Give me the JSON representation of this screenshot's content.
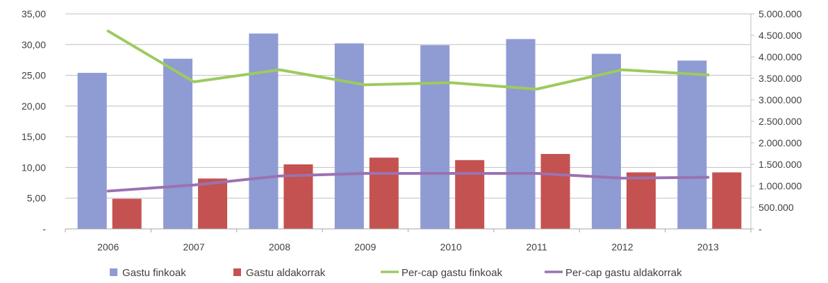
{
  "chart_data": {
    "type": "bar",
    "categories": [
      "2006",
      "2007",
      "2008",
      "2009",
      "2010",
      "2011",
      "2012",
      "2013"
    ],
    "series": [
      {
        "name": "Gastu finkoak",
        "type": "bar",
        "axis": "left",
        "color": "#8f9bd3",
        "values": [
          25.4,
          27.7,
          31.8,
          30.2,
          29.9,
          30.9,
          28.5,
          27.4
        ]
      },
      {
        "name": "Gastu aldakorrak",
        "type": "bar",
        "axis": "left",
        "color": "#c45251",
        "values": [
          4.9,
          8.2,
          10.5,
          11.6,
          11.2,
          12.2,
          9.2,
          9.2
        ]
      },
      {
        "name": "Per-cap gastu finkoak",
        "type": "line",
        "axis": "right",
        "color": "#9ccb5e",
        "values": [
          4600000,
          3420000,
          3700000,
          3350000,
          3400000,
          3250000,
          3700000,
          3580000
        ]
      },
      {
        "name": "Per-cap gastu aldakorrak",
        "type": "line",
        "axis": "right",
        "color": "#9b72b0",
        "values": [
          880000,
          1020000,
          1230000,
          1290000,
          1290000,
          1290000,
          1180000,
          1200000
        ]
      }
    ],
    "y_left": {
      "min": 0,
      "max": 35,
      "step": 5,
      "tick_labels": [
        "-",
        "5,00",
        "10,00",
        "15,00",
        "20,00",
        "25,00",
        "30,00",
        "35,00"
      ]
    },
    "y_right": {
      "min": 0,
      "max": 5000000,
      "step": 500000,
      "tick_labels": [
        "-",
        "500.000",
        "1.000.000",
        "1.500.000",
        "2.000.000",
        "2.500.000",
        "3.000.000",
        "3.500.000",
        "4.000.000",
        "4.500.000",
        "5.000.000"
      ]
    },
    "grid": true,
    "legend_position": "bottom",
    "title": "",
    "xlabel": "",
    "ylabel": ""
  }
}
